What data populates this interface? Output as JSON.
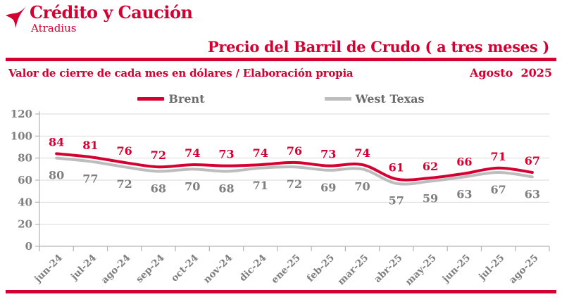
{
  "brand": {
    "logo_icon": "atradius-bird-icon",
    "name": "Crédito y Caución",
    "subname": "Atradius"
  },
  "header": {
    "title": "Precio del Barril de Crudo ( a tres meses )",
    "subtitle": "Valor de cierre de cada mes en dólares / Elaboración propia",
    "period": "Agosto 2025"
  },
  "colors": {
    "brand_red": "#d50032",
    "series_gray": "#bdbdbd",
    "value_label_gray": "#7f7f7f",
    "axis_label_gray": "#7f7f7f",
    "legend_text_gray": "#6b6b6b",
    "gridline": "#d9d9d9",
    "axis_line": "#b3b3b3"
  },
  "chart_data": {
    "type": "line",
    "title": "Precio del Barril de Crudo ( a tres meses )",
    "subtitle": "Valor de cierre de cada mes en dólares / Elaboración propia",
    "categories": [
      "jun-24",
      "jul-24",
      "ago-24",
      "sep-24",
      "oct-24",
      "nov-24",
      "dic-24",
      "ene-25",
      "feb-25",
      "mar-25",
      "abr-25",
      "may-25",
      "jun-25",
      "jul-25",
      "ago-25"
    ],
    "series": [
      {
        "name": "Brent",
        "color": "#d50032",
        "label_position": "above",
        "values": [
          84,
          81,
          76,
          72,
          74,
          73,
          74,
          76,
          73,
          74,
          61,
          62,
          66,
          71,
          67
        ]
      },
      {
        "name": "West Texas",
        "color": "#bdbdbd",
        "label_position": "below",
        "values": [
          80,
          77,
          72,
          68,
          70,
          68,
          71,
          72,
          69,
          70,
          57,
          59,
          63,
          67,
          63
        ]
      }
    ],
    "ylim": [
      0,
      120
    ],
    "yticks": [
      0,
      20,
      40,
      60,
      80,
      100,
      120
    ],
    "grid": true,
    "smooth": true,
    "data_labels": true,
    "legend_position": "top-center",
    "xlabel": "",
    "ylabel": ""
  }
}
